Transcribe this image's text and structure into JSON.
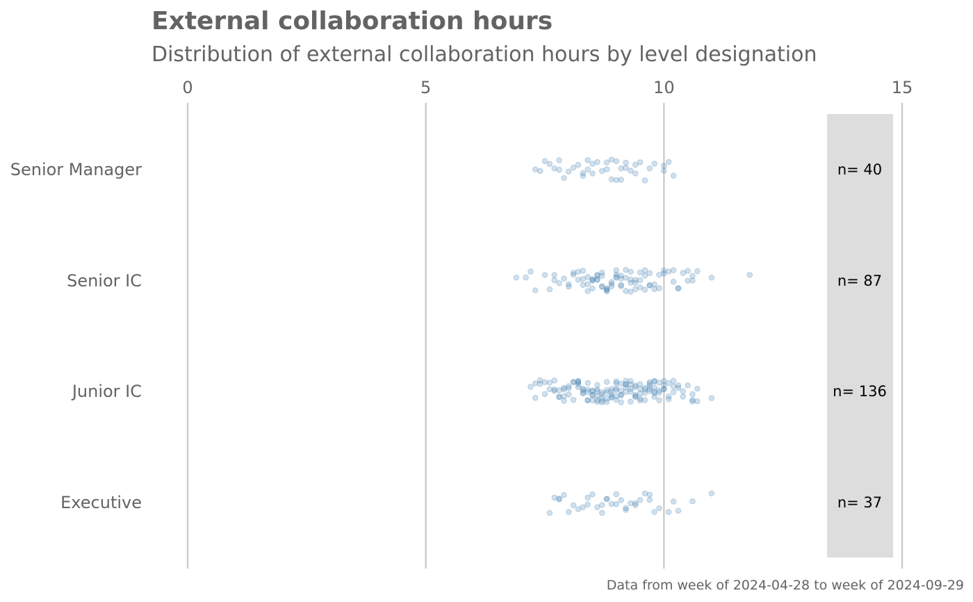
{
  "chart_data": {
    "type": "scatter",
    "title": "External collaboration hours",
    "subtitle": "Distribution of external collaboration hours by level designation",
    "caption": "Data from week of 2024-04-28 to week of 2024-09-29",
    "xlabel": "",
    "ylabel": "",
    "xlim": [
      0,
      15
    ],
    "x_ticks": [
      0,
      5,
      10,
      15
    ],
    "grid": "vertical major",
    "categories": [
      "Senior Manager",
      "Senior IC",
      "Junior IC",
      "Executive"
    ],
    "counts": [
      "n= 40",
      "n= 87",
      "n= 136",
      "n= 37"
    ],
    "point_color": "#4682b4",
    "panel_color": "#dddddd",
    "points": [
      [
        7.3,
        7.4,
        7.5,
        7.6,
        7.7,
        7.8,
        7.8,
        7.9,
        8.0,
        8.1,
        8.2,
        8.3,
        8.3,
        8.4,
        8.4,
        8.5,
        8.5,
        8.6,
        8.7,
        8.8,
        8.8,
        8.9,
        8.9,
        9.0,
        9.0,
        9.1,
        9.1,
        9.2,
        9.2,
        9.3,
        9.4,
        9.4,
        9.5,
        9.6,
        9.7,
        9.8,
        10.0,
        10.0,
        10.1,
        10.2
      ],
      [
        6.9,
        7.1,
        7.2,
        7.3,
        7.5,
        7.6,
        7.7,
        7.7,
        7.8,
        7.9,
        8.0,
        8.0,
        8.1,
        8.1,
        8.2,
        8.2,
        8.3,
        8.3,
        8.3,
        8.4,
        8.4,
        8.4,
        8.5,
        8.5,
        8.5,
        8.5,
        8.6,
        8.6,
        8.6,
        8.6,
        8.7,
        8.7,
        8.7,
        8.7,
        8.8,
        8.8,
        8.8,
        8.8,
        8.9,
        8.9,
        8.9,
        9.0,
        9.0,
        9.0,
        9.0,
        9.1,
        9.1,
        9.1,
        9.1,
        9.2,
        9.2,
        9.2,
        9.3,
        9.3,
        9.3,
        9.3,
        9.4,
        9.4,
        9.4,
        9.5,
        9.5,
        9.5,
        9.6,
        9.6,
        9.6,
        9.7,
        9.7,
        9.7,
        9.8,
        9.8,
        9.9,
        9.9,
        10.0,
        10.0,
        10.1,
        10.2,
        10.2,
        10.3,
        10.3,
        10.4,
        10.5,
        10.5,
        10.6,
        10.6,
        10.7,
        11.0,
        11.8
      ],
      [
        7.2,
        7.3,
        7.3,
        7.4,
        7.4,
        7.5,
        7.5,
        7.6,
        7.6,
        7.7,
        7.7,
        7.7,
        7.8,
        7.8,
        7.8,
        7.9,
        7.9,
        7.9,
        8.0,
        8.0,
        8.0,
        8.1,
        8.1,
        8.1,
        8.2,
        8.2,
        8.2,
        8.2,
        8.3,
        8.3,
        8.3,
        8.3,
        8.4,
        8.4,
        8.4,
        8.4,
        8.4,
        8.5,
        8.5,
        8.5,
        8.5,
        8.5,
        8.6,
        8.6,
        8.6,
        8.6,
        8.6,
        8.7,
        8.7,
        8.7,
        8.7,
        8.7,
        8.8,
        8.8,
        8.8,
        8.8,
        8.8,
        8.9,
        8.9,
        8.9,
        8.9,
        8.9,
        9.0,
        9.0,
        9.0,
        9.0,
        9.0,
        9.1,
        9.1,
        9.1,
        9.1,
        9.1,
        9.2,
        9.2,
        9.2,
        9.2,
        9.2,
        9.3,
        9.3,
        9.3,
        9.3,
        9.3,
        9.4,
        9.4,
        9.4,
        9.4,
        9.5,
        9.5,
        9.5,
        9.5,
        9.5,
        9.6,
        9.6,
        9.6,
        9.6,
        9.7,
        9.7,
        9.7,
        9.7,
        9.7,
        9.8,
        9.8,
        9.8,
        9.8,
        9.8,
        9.9,
        9.9,
        9.9,
        9.9,
        10.0,
        10.0,
        10.0,
        10.0,
        10.1,
        10.1,
        10.1,
        10.2,
        10.2,
        10.2,
        10.3,
        10.3,
        10.4,
        10.4,
        10.5,
        10.6,
        10.6,
        10.6,
        10.7,
        10.7,
        11.0,
        7.9,
        8.2,
        8.6,
        9.0,
        9.4,
        9.8
      ],
      [
        7.6,
        7.7,
        7.8,
        7.8,
        7.9,
        8.0,
        8.1,
        8.2,
        8.3,
        8.4,
        8.4,
        8.5,
        8.6,
        8.7,
        8.7,
        8.8,
        8.8,
        8.9,
        9.0,
        9.0,
        9.1,
        9.2,
        9.2,
        9.3,
        9.4,
        9.4,
        9.5,
        9.6,
        9.7,
        9.7,
        9.8,
        9.9,
        10.1,
        10.2,
        10.3,
        10.6,
        11.0
      ]
    ]
  }
}
